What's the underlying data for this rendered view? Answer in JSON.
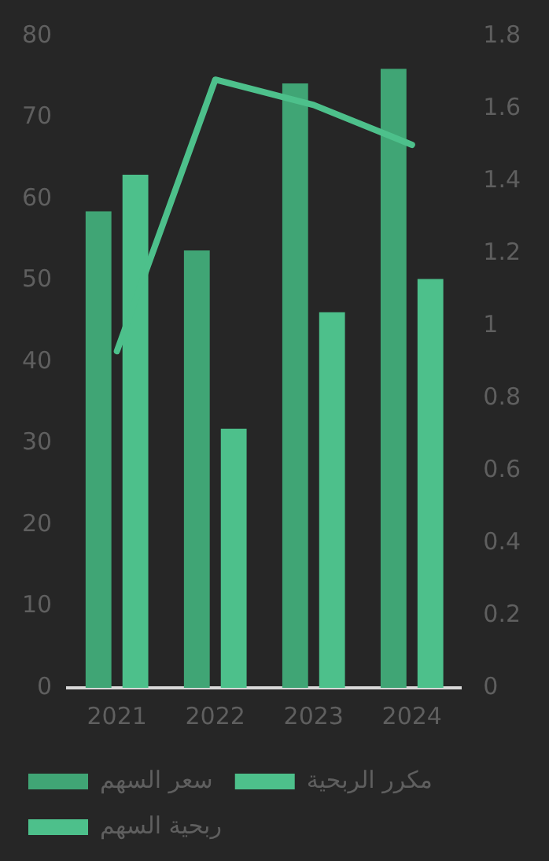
{
  "chart_data": {
    "type": "bar",
    "categories": [
      "2021",
      "2022",
      "2023",
      "2024"
    ],
    "series": [
      {
        "name": "سعر السهم",
        "color": "#40a575",
        "values": [
          58.5,
          53.7,
          74.2,
          76
        ]
      },
      {
        "name": "مكرر الربحية",
        "color": "#4dc08b",
        "values": [
          63,
          31.8,
          46.1,
          50.2
        ]
      },
      {
        "name": "ربحية السهم",
        "type": "line",
        "axis": "y2",
        "color": "#4dc08b",
        "values": [
          0.93,
          1.68,
          1.61,
          1.5
        ]
      }
    ],
    "ylim": [
      0,
      80
    ],
    "yticks": [
      0,
      10,
      20,
      30,
      40,
      50,
      60,
      70,
      80
    ],
    "y2lim": [
      0,
      1.8
    ],
    "y2ticks": [
      0,
      0.2,
      0.4,
      0.6,
      0.8,
      1,
      1.2,
      1.4,
      1.6,
      1.8
    ],
    "grid": false,
    "legend": "bottom",
    "marker": "none",
    "line_style": "solid"
  }
}
